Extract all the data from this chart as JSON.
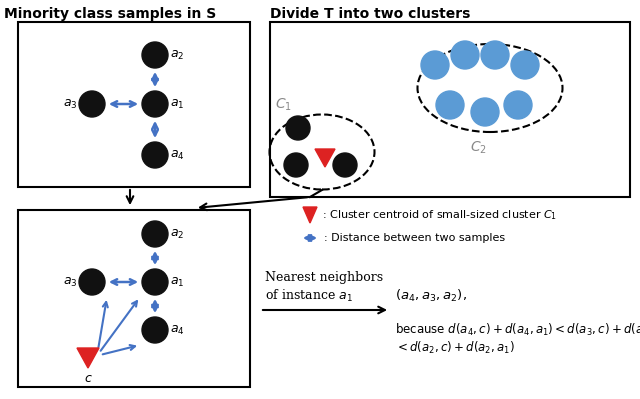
{
  "title_left": "Minority class samples in S",
  "title_right": "Divide T into two clusters",
  "bg_color": "#ffffff",
  "black_dot_color": "#111111",
  "blue_dot_color": "#5b9bd5",
  "red_color": "#dd2222",
  "arrow_color": "#4472c4",
  "gray_label_color": "#888888",
  "lfs": 9,
  "title_fs": 10
}
